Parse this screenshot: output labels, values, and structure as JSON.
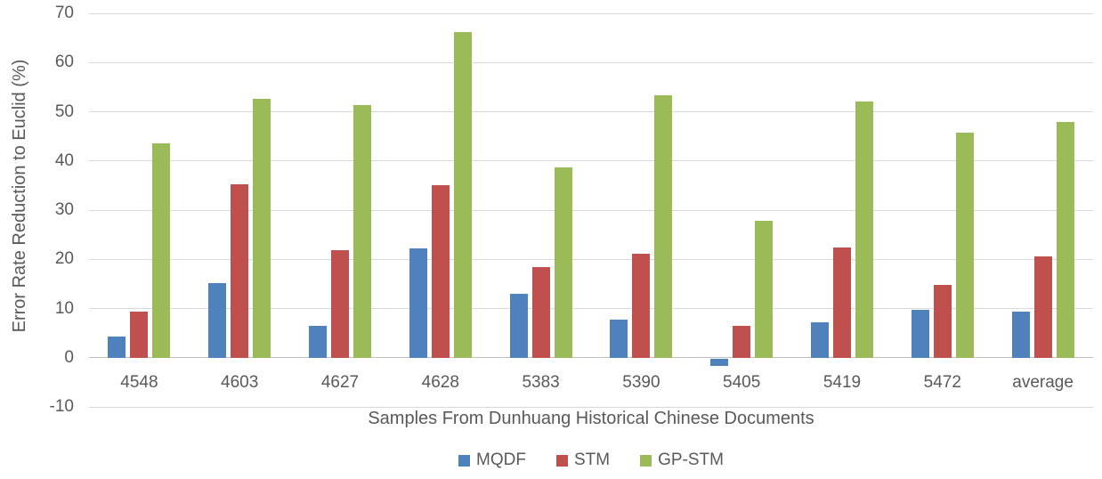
{
  "chart_data": {
    "type": "bar",
    "title": "",
    "xlabel": "Samples From Dunhuang Historical Chinese Documents",
    "ylabel": "Error Rate Reduction to Euclid (%)",
    "categories": [
      "4548",
      "4603",
      "4627",
      "4628",
      "5383",
      "5390",
      "5405",
      "5419",
      "5472",
      "average"
    ],
    "series": [
      {
        "name": "MQDF",
        "color": "#4f81bd",
        "values": [
          4.3,
          15.1,
          6.4,
          22.2,
          13.0,
          7.7,
          -1.5,
          7.2,
          9.8,
          9.4
        ]
      },
      {
        "name": "STM",
        "color": "#c0504d",
        "values": [
          9.4,
          35.3,
          21.8,
          35.0,
          18.4,
          21.1,
          6.4,
          22.4,
          14.8,
          20.5
        ]
      },
      {
        "name": "GP-STM",
        "color": "#9bbb59",
        "values": [
          43.6,
          52.7,
          51.4,
          66.2,
          38.7,
          53.4,
          27.9,
          52.1,
          45.8,
          48.0
        ]
      }
    ],
    "ylim": [
      -10,
      70
    ],
    "ytick_step": 10,
    "ytick_labels": [
      "70",
      "60",
      "50",
      "40",
      "30",
      "20",
      "10",
      "0",
      "-10"
    ],
    "grid": true,
    "legend_position": "bottom",
    "gridline_color": "#d9d9d9",
    "axis_text_color": "#595959"
  }
}
